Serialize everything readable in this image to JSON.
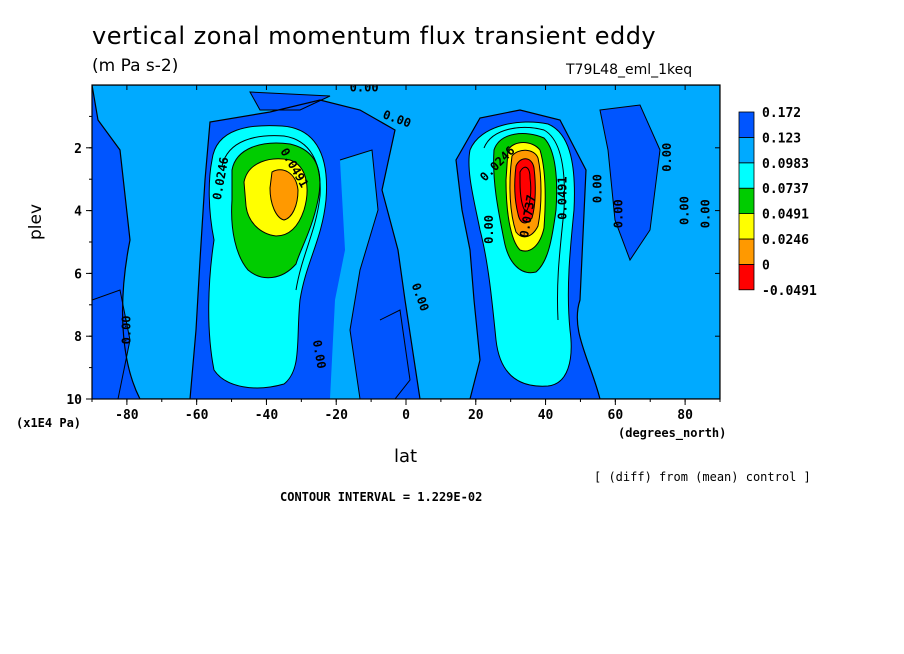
{
  "chart_data": {
    "type": "heatmap",
    "title": "vertical zonal momentum flux transient eddy",
    "units": "(m Pa s-2)",
    "run_label": "T79L48_eml_1keq",
    "xlabel": "lat",
    "x_units": "(degrees_north)",
    "ylabel": "plev",
    "y_units": "(x1E4 Pa)",
    "xlim": [
      -90,
      90
    ],
    "ylim": [
      10,
      0
    ],
    "x_ticks": [
      -80,
      -60,
      -40,
      -20,
      0,
      20,
      40,
      60,
      80
    ],
    "y_ticks": [
      2,
      4,
      6,
      8,
      10
    ],
    "note": "[ (diff) from (mean) control ]",
    "contour_interval_text": "CONTOUR INTERVAL = 1.229E-02",
    "colorbar": {
      "levels": [
        "0.172",
        "0.123",
        "0.0983",
        "0.0737",
        "0.0491",
        "0.0246",
        "0",
        "-0.0491"
      ],
      "colors": [
        "#ff0000",
        "#ff9900",
        "#ffff00",
        "#00cc00",
        "#00ffff",
        "#00aaff",
        "#0055ff"
      ]
    },
    "contour_labels": [
      {
        "text": "0.00",
        "lat": -12,
        "plev": 0.2,
        "angle": 0
      },
      {
        "text": "0.00",
        "lat": -3,
        "plev": 1.2,
        "angle": 20
      },
      {
        "text": "0.0246",
        "lat": -52,
        "plev": 3.0,
        "angle": -80
      },
      {
        "text": "0.0491",
        "lat": -33,
        "plev": 2.7,
        "angle": 60
      },
      {
        "text": "0.0246",
        "lat": 27,
        "plev": 2.6,
        "angle": -45
      },
      {
        "text": "0.0737",
        "lat": 36,
        "plev": 4.2,
        "angle": -80
      },
      {
        "text": "0.0491",
        "lat": 46,
        "plev": 3.6,
        "angle": -90
      },
      {
        "text": "0.00",
        "lat": 25,
        "plev": 4.6,
        "angle": -90
      },
      {
        "text": "0.00",
        "lat": 56,
        "plev": 3.3,
        "angle": -90
      },
      {
        "text": "0.00",
        "lat": 62,
        "plev": 4.1,
        "angle": -90
      },
      {
        "text": "0.00",
        "lat": 76,
        "plev": 2.3,
        "angle": -90
      },
      {
        "text": "0.00",
        "lat": 81,
        "plev": 4.0,
        "angle": -90
      },
      {
        "text": "0.00",
        "lat": 87,
        "plev": 4.1,
        "angle": -90
      },
      {
        "text": "0.00",
        "lat": -79,
        "plev": 7.8,
        "angle": -90
      },
      {
        "text": "0.00",
        "lat": 3,
        "plev": 6.8,
        "angle": 70
      },
      {
        "text": "0.00",
        "lat": -26,
        "plev": 8.6,
        "angle": 80
      }
    ]
  }
}
